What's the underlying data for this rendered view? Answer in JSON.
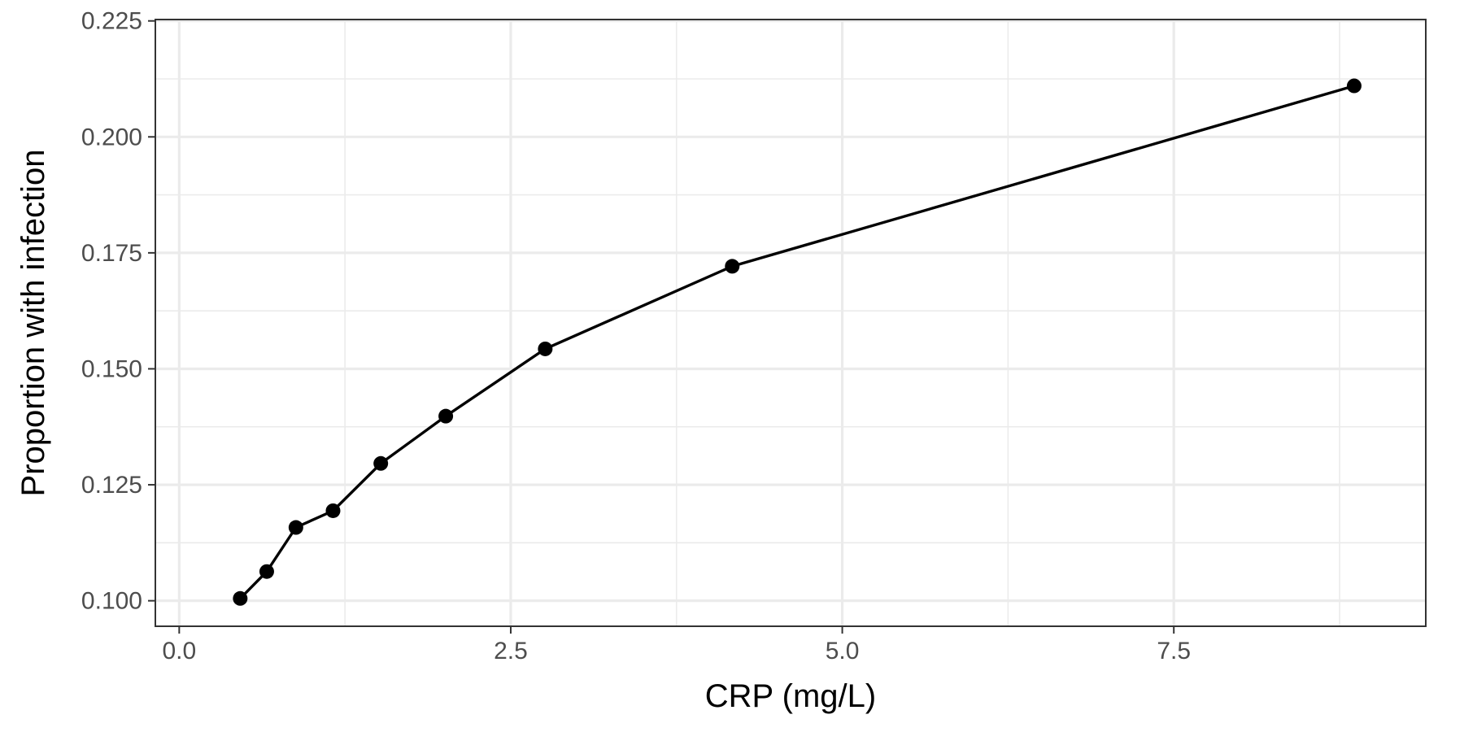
{
  "chart_data": {
    "type": "line",
    "title": "",
    "xlabel": "CRP (mg/L)",
    "ylabel": "Proportion with infection",
    "xlim": [
      -0.18,
      9.4
    ],
    "ylim": [
      0.0945,
      0.2253
    ],
    "x_ticks": [
      0.0,
      2.5,
      5.0,
      7.5
    ],
    "x_tick_labels": [
      "0.0",
      "2.5",
      "5.0",
      "7.5"
    ],
    "y_ticks": [
      0.1,
      0.125,
      0.15,
      0.175,
      0.2,
      0.225
    ],
    "y_tick_labels": [
      "0.100",
      "0.125",
      "0.150",
      "0.175",
      "0.200",
      "0.225"
    ],
    "grid": true,
    "legend": "none",
    "series": [
      {
        "color": "#000000",
        "points": [
          {
            "x": 0.46,
            "y": 0.1005
          },
          {
            "x": 0.66,
            "y": 0.1063
          },
          {
            "x": 0.88,
            "y": 0.1158
          },
          {
            "x": 1.16,
            "y": 0.1194
          },
          {
            "x": 1.52,
            "y": 0.1296
          },
          {
            "x": 2.01,
            "y": 0.1398
          },
          {
            "x": 2.76,
            "y": 0.1543
          },
          {
            "x": 4.17,
            "y": 0.1721
          },
          {
            "x": 8.86,
            "y": 0.211
          }
        ]
      }
    ]
  }
}
